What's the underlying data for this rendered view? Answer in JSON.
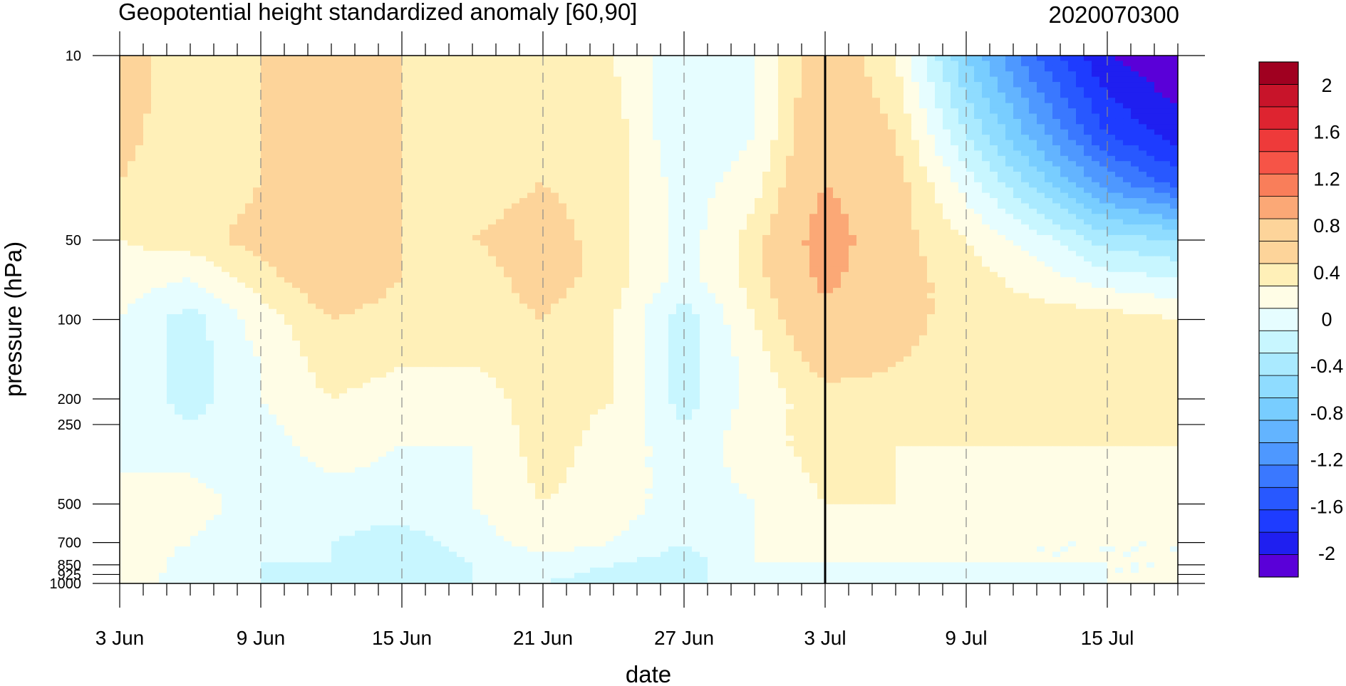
{
  "chart_data": {
    "type": "heatmap",
    "title": "Geopotential height standardized anomaly [60,90]",
    "title_right": "2020070300",
    "xlabel": "date",
    "ylabel": "pressure (hPa)",
    "x_tick_labels": [
      "3 Jun",
      "9 Jun",
      "15 Jun",
      "21 Jun",
      "27 Jun",
      "3 Jul",
      "9 Jul",
      "15 Jul"
    ],
    "x_tick_days": [
      0,
      6,
      12,
      18,
      24,
      30,
      36,
      42
    ],
    "x_range_days": [
      0,
      45
    ],
    "current_day_line": 30,
    "y_scale": "log",
    "y_range": [
      1000,
      10
    ],
    "y_tick_values": [
      10,
      50,
      100,
      200,
      250,
      500,
      700,
      850,
      925,
      1000
    ],
    "y_tick_labels": [
      "10",
      "50",
      "100",
      "200",
      "250",
      "500",
      "700",
      "850",
      "925",
      "1000"
    ],
    "colorbar_labels": [
      "2",
      "1.6",
      "1.2",
      "0.8",
      "0.4",
      "0",
      "-0.4",
      "-0.8",
      "-1.2",
      "-1.6",
      "-2"
    ],
    "colorbar_levels": [
      -2.2,
      -2.0,
      -1.8,
      -1.6,
      -1.4,
      -1.2,
      -1.0,
      -0.8,
      -0.6,
      -0.4,
      -0.2,
      0,
      0.2,
      0.4,
      0.6,
      0.8,
      1.0,
      1.2,
      1.4,
      1.6,
      1.8,
      2.0,
      2.2
    ],
    "colorbar_colors": [
      "#5a00d8",
      "#1f1ff0",
      "#1e3cff",
      "#2858ff",
      "#3a78ff",
      "#4e98ff",
      "#63b4ff",
      "#78cdff",
      "#8fdcff",
      "#aaeaff",
      "#c8f6ff",
      "#e6fdff",
      "#fffde6",
      "#fff0b8",
      "#fdd49a",
      "#fdd49a",
      "#fba876",
      "#f97e5a",
      "#f65447",
      "#ee3a3a",
      "#de2430",
      "#c8142a",
      "#a00020"
    ],
    "grid": "dashed vertical lines at date ticks",
    "legend": "colorbar right",
    "samples_note": "anomaly values sampled at days and pressure levels",
    "sample_days": [
      0,
      3,
      6,
      9,
      12,
      15,
      18,
      21,
      24,
      27,
      30,
      33,
      36,
      39,
      42,
      45
    ],
    "sample_levels": [
      10,
      20,
      30,
      50,
      70,
      100,
      150,
      200,
      300,
      500,
      700,
      850,
      1000
    ],
    "values": [
      [
        0.8,
        0.4,
        0.6,
        0.8,
        0.6,
        0.4,
        0.6,
        0.4,
        0.0,
        0.2,
        0.8,
        0.4,
        -0.6,
        -1.4,
        -2.0,
        -2.2
      ],
      [
        0.7,
        0.4,
        0.6,
        0.9,
        0.6,
        0.5,
        0.6,
        0.5,
        0.0,
        0.2,
        0.9,
        0.6,
        -0.2,
        -0.9,
        -1.6,
        -1.9
      ],
      [
        0.6,
        0.4,
        0.6,
        0.9,
        0.6,
        0.5,
        0.6,
        0.5,
        0.1,
        0.3,
        1.0,
        0.7,
        0.1,
        -0.5,
        -1.1,
        -1.5
      ],
      [
        0.4,
        0.5,
        0.7,
        0.9,
        0.6,
        0.6,
        0.7,
        0.5,
        0.1,
        0.5,
        1.2,
        0.7,
        0.4,
        0.1,
        -0.3,
        -0.4
      ],
      [
        0.3,
        0.2,
        0.5,
        0.8,
        0.6,
        0.5,
        0.7,
        0.5,
        0.1,
        0.5,
        1.1,
        0.7,
        0.5,
        0.3,
        0.1,
        0.0
      ],
      [
        0.2,
        -0.1,
        0.3,
        0.6,
        0.5,
        0.5,
        0.6,
        0.4,
        -0.1,
        0.4,
        0.9,
        0.7,
        0.5,
        0.5,
        0.5,
        0.4
      ],
      [
        0.2,
        -0.1,
        0.2,
        0.5,
        0.4,
        0.4,
        0.5,
        0.4,
        -0.1,
        0.3,
        0.7,
        0.6,
        0.5,
        0.5,
        0.5,
        0.5
      ],
      [
        0.2,
        -0.1,
        0.2,
        0.4,
        0.3,
        0.3,
        0.5,
        0.4,
        -0.1,
        0.3,
        0.5,
        0.5,
        0.5,
        0.5,
        0.5,
        0.5
      ],
      [
        0.2,
        0.1,
        0.1,
        0.3,
        0.2,
        0.2,
        0.5,
        0.3,
        0.1,
        0.3,
        0.5,
        0.4,
        0.4,
        0.4,
        0.4,
        0.4
      ],
      [
        0.2,
        0.3,
        0.1,
        0.1,
        0.1,
        0.2,
        0.4,
        0.3,
        0.1,
        0.2,
        0.4,
        0.4,
        0.3,
        0.3,
        0.3,
        0.3
      ],
      [
        0.3,
        0.2,
        0.0,
        0.0,
        -0.1,
        0.1,
        0.3,
        0.2,
        0.0,
        0.2,
        0.3,
        0.3,
        0.3,
        0.2,
        0.2,
        0.2
      ],
      [
        0.4,
        0.1,
        0.0,
        0.0,
        -0.2,
        0.0,
        0.1,
        0.0,
        -0.1,
        0.2,
        0.2,
        0.2,
        0.2,
        0.2,
        0.2,
        0.2
      ],
      [
        0.3,
        0.1,
        0.0,
        -0.1,
        -0.1,
        0.0,
        0.0,
        -0.1,
        -0.1,
        0.2,
        0.1,
        0.1,
        0.1,
        0.1,
        0.2,
        0.2
      ]
    ]
  }
}
